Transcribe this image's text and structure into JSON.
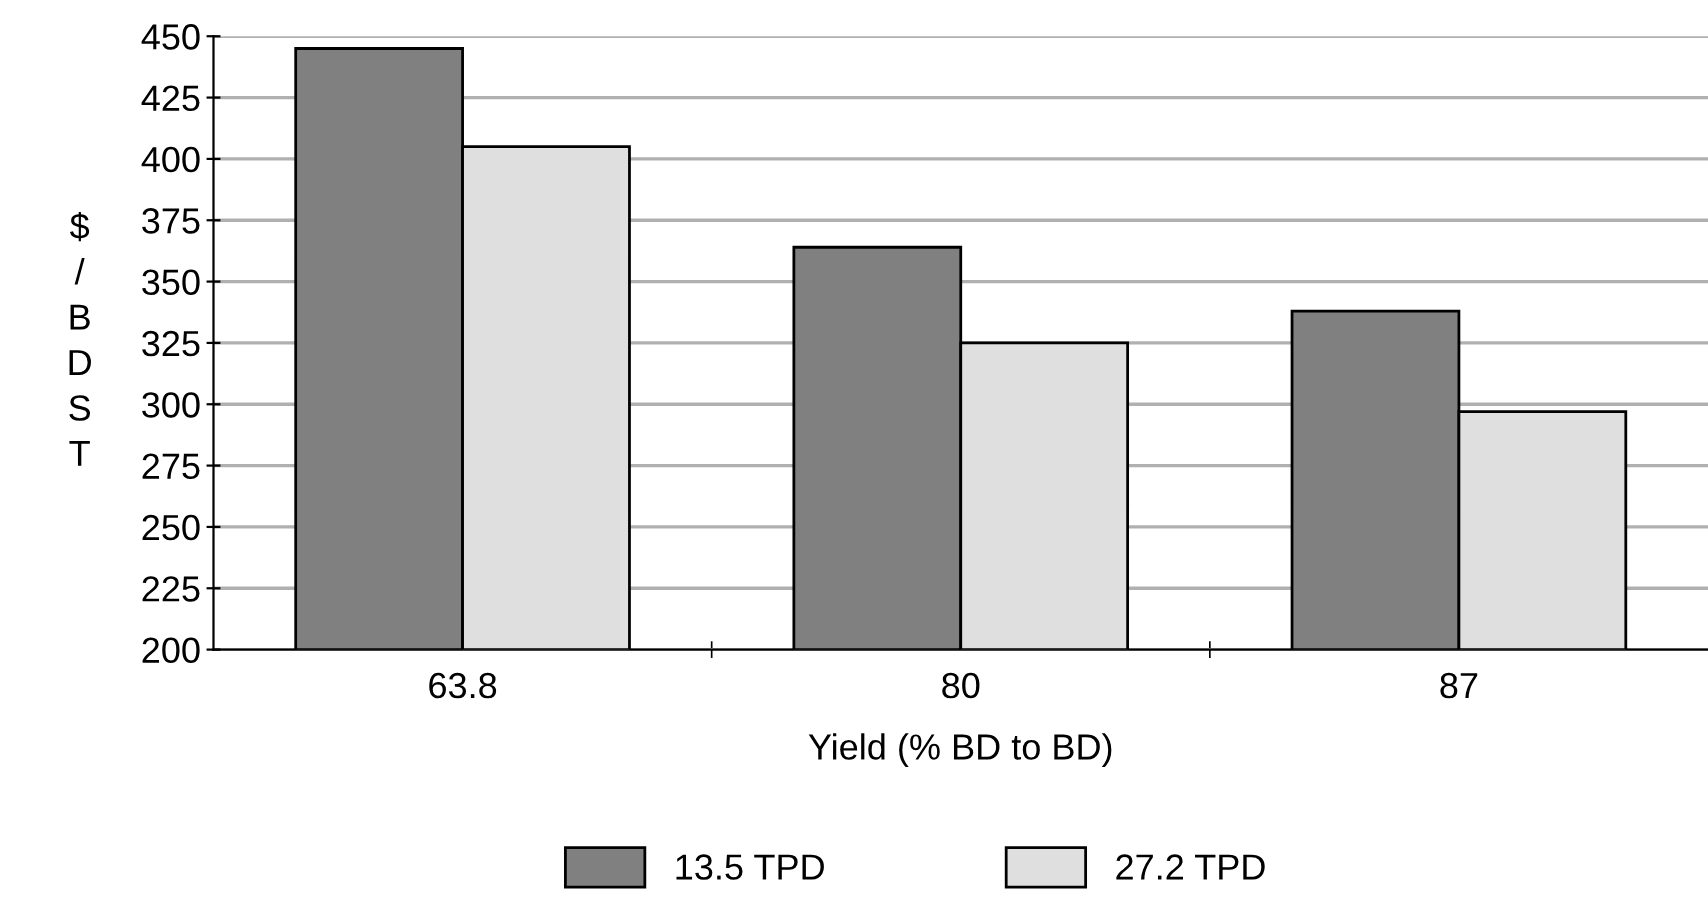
{
  "chart_data": {
    "type": "bar",
    "xlabel": "Yield (% BD to BD)",
    "ylabel": "$/BDST",
    "categories": [
      "63.8",
      "80",
      "87"
    ],
    "series": [
      {
        "name": "13.5 TPD",
        "color": "#808080",
        "values": [
          445,
          364,
          338
        ]
      },
      {
        "name": "27.2 TPD",
        "color": "#dfdfdf",
        "values": [
          405,
          325,
          297
        ]
      }
    ],
    "ylim": [
      200,
      450
    ],
    "yticks": [
      200,
      225,
      250,
      275,
      300,
      325,
      350,
      375,
      400,
      425,
      450
    ],
    "grid": "y",
    "legend": "bottom"
  }
}
